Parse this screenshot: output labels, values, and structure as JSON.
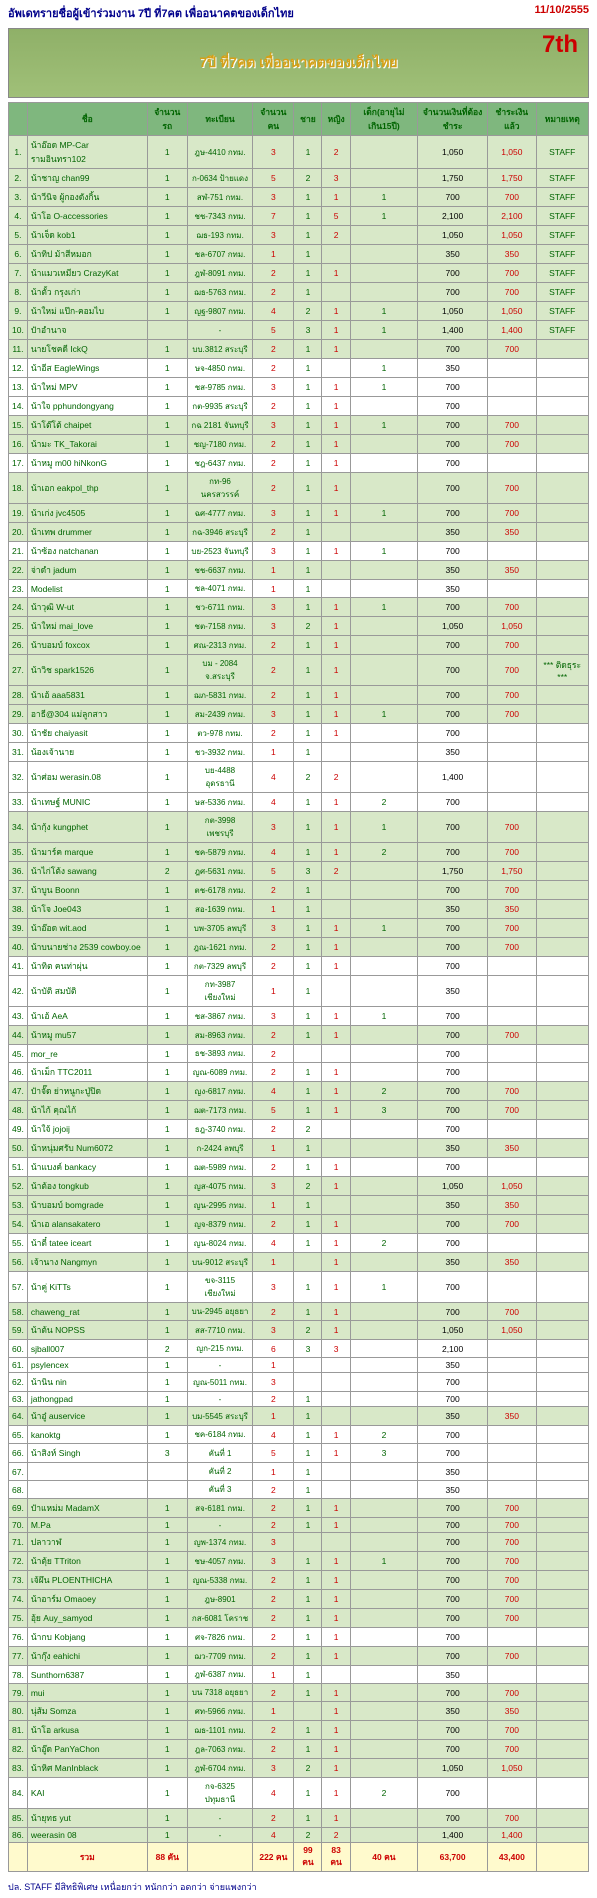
{
  "title": "อัพเดทรายชื่อผู้เข้าร่วมงาน 7ปี ที่7คต เพื่ออนาคตของเด็กไทย",
  "date": "11/10/2555",
  "banner": "7ปี ที่7คต เพื่ออนาคตของเด็กไทย",
  "headers": [
    "",
    "ชื่อ",
    "จำนวนรถ",
    "ทะเบียน",
    "จำนวนคน",
    "ชาย",
    "หญิง",
    "เด็ก(อายุไม่เกิน15ปี)",
    "จำนวนเงินที่ต้องชำระ",
    "ชำระเงินแล้ว",
    "หมายเหตุ"
  ],
  "rows": [
    {
      "i": 1,
      "n": "น้าอ๊อด MP-Car รามอินทรา102",
      "c": 1,
      "r": "ฎษ-4410 กทม.",
      "p": 3,
      "m": 1,
      "f": 2,
      "k": "",
      "a": "1,050",
      "pd": "1,050",
      "nt": "STAFF",
      "hl": 1
    },
    {
      "i": 2,
      "n": "น้าชาญ chan99",
      "c": 1,
      "r": "ก-0634 ป้ายแดง",
      "p": 5,
      "m": 2,
      "f": 3,
      "k": "",
      "a": "1,750",
      "pd": "1,750",
      "nt": "STAFF",
      "hl": 1
    },
    {
      "i": 3,
      "n": "น้าวีนิจ ผู้กองดังกิ้น",
      "c": 1,
      "r": "สฬ-751 กทม.",
      "p": 3,
      "m": 1,
      "f": 1,
      "k": 1,
      "a": "700",
      "pd": "700",
      "nt": "STAFF",
      "hl": 1
    },
    {
      "i": 4,
      "n": "น้าโอ O-accessories",
      "c": 1,
      "r": "ชช-7343 กทม.",
      "p": 7,
      "m": 1,
      "f": 5,
      "k": 1,
      "a": "2,100",
      "pd": "2,100",
      "nt": "STAFF",
      "hl": 1
    },
    {
      "i": 5,
      "n": "น้าเจ็ด kob1",
      "c": 1,
      "r": "ฌธ-193 กทม.",
      "p": 3,
      "m": 1,
      "f": 2,
      "k": "",
      "a": "1,050",
      "pd": "1,050",
      "nt": "STAFF",
      "hl": 1
    },
    {
      "i": 6,
      "n": "น้าทิป ม้าสีหมอก",
      "c": 1,
      "r": "ชล-6707 กทม.",
      "p": 1,
      "m": 1,
      "f": "",
      "k": "",
      "a": "350",
      "pd": "350",
      "nt": "STAFF",
      "hl": 1
    },
    {
      "i": 7,
      "n": "น้าแมวเหมียว CrazyKat",
      "c": 1,
      "r": "ฎฬ-8091 กทม.",
      "p": 2,
      "m": 1,
      "f": 1,
      "k": "",
      "a": "700",
      "pd": "700",
      "nt": "STAFF",
      "hl": 1
    },
    {
      "i": 8,
      "n": "น้าตั้ว กรุงเก่า",
      "c": 1,
      "r": "ฌธ-5763 กทม.",
      "p": 2,
      "m": 1,
      "f": "",
      "k": "",
      "a": "700",
      "pd": "700",
      "nt": "STAFF",
      "hl": 1
    },
    {
      "i": 9,
      "n": "น้าใหม่ แป๊ก-คอมไบ",
      "c": 1,
      "r": "ญฐ-9807 กทม.",
      "p": 4,
      "m": 2,
      "f": 1,
      "k": 1,
      "a": "1,050",
      "pd": "1,050",
      "nt": "STAFF",
      "hl": 1
    },
    {
      "i": 10,
      "n": "ป๋าอำนาจ",
      "c": "",
      "r": "-",
      "p": 5,
      "m": 3,
      "f": 1,
      "k": 1,
      "a": "1,400",
      "pd": "1,400",
      "nt": "STAFF",
      "hl": 1
    },
    {
      "i": 11,
      "n": "นายโชคดี IckQ",
      "c": 1,
      "r": "บบ.3812 สระบุรี",
      "p": 2,
      "m": 1,
      "f": 1,
      "k": "",
      "a": "700",
      "pd": "700",
      "nt": "",
      "hl": 1
    },
    {
      "i": 12,
      "n": "น้าอีส EagleWings",
      "c": 1,
      "r": "ษจ-4850 กทม.",
      "p": 2,
      "m": 1,
      "f": "",
      "k": 1,
      "a": "350",
      "pd": "",
      "nt": ""
    },
    {
      "i": 13,
      "n": "น้าใหม่ MPV",
      "c": 1,
      "r": "ชส-9785 กทม.",
      "p": 3,
      "m": 1,
      "f": 1,
      "k": 1,
      "a": "700",
      "pd": "",
      "nt": ""
    },
    {
      "i": 14,
      "n": "น้าใจ pphundongyang",
      "c": 1,
      "r": "กต-9935 สระบุรี",
      "p": 2,
      "m": 1,
      "f": 1,
      "k": "",
      "a": "700",
      "pd": "",
      "nt": ""
    },
    {
      "i": 15,
      "n": "น้าโต๊โต้ chaipet",
      "c": 1,
      "r": "กฉ 2181 จันทบุรี",
      "p": 3,
      "m": 1,
      "f": 1,
      "k": 1,
      "a": "700",
      "pd": "700",
      "nt": "",
      "hl": 1
    },
    {
      "i": 16,
      "n": "น้ามะ TK_Takorai",
      "c": 1,
      "r": "ชญ-7180 กทม.",
      "p": 2,
      "m": 1,
      "f": 1,
      "k": "",
      "a": "700",
      "pd": "700",
      "nt": "",
      "hl": 1
    },
    {
      "i": 17,
      "n": "น้าหมู m00 hiNkonG",
      "c": 1,
      "r": "ชฎ-6437 กทม.",
      "p": 2,
      "m": 1,
      "f": 1,
      "k": "",
      "a": "700",
      "pd": "",
      "nt": ""
    },
    {
      "i": 18,
      "n": "น้าเอก eakpol_thp",
      "c": 1,
      "r": "กท-96 นครสวรรค์",
      "p": 2,
      "m": 1,
      "f": 1,
      "k": "",
      "a": "700",
      "pd": "700",
      "nt": "",
      "hl": 1
    },
    {
      "i": 19,
      "n": "น้าเก่ง jvc4505",
      "c": 1,
      "r": "ฉศ-4777 กทม.",
      "p": 3,
      "m": 1,
      "f": 1,
      "k": 1,
      "a": "700",
      "pd": "700",
      "nt": "",
      "hl": 1
    },
    {
      "i": 20,
      "n": "น้าเทพ drummer",
      "c": 1,
      "r": "กฉ-3946 สระบุรี",
      "p": 2,
      "m": 1,
      "f": "",
      "k": "",
      "a": "350",
      "pd": "350",
      "nt": "",
      "hl": 1
    },
    {
      "i": 21,
      "n": "น้าซ้อง natchanan",
      "c": 1,
      "r": "บย-2523 จันทบุรี",
      "p": 3,
      "m": 1,
      "f": 1,
      "k": 1,
      "a": "700",
      "pd": "",
      "nt": ""
    },
    {
      "i": 22,
      "n": "จ่าดำ jadum",
      "c": 1,
      "r": "ชช-6637 กทม.",
      "p": 1,
      "m": 1,
      "f": "",
      "k": "",
      "a": "350",
      "pd": "350",
      "nt": "",
      "hl": 1
    },
    {
      "i": 23,
      "n": "Modelist",
      "c": 1,
      "r": "ชล-4071 กทม.",
      "p": 1,
      "m": 1,
      "f": "",
      "k": "",
      "a": "350",
      "pd": "",
      "nt": ""
    },
    {
      "i": 24,
      "n": "น้าวุฒิ W-ut",
      "c": 1,
      "r": "ชว-6711 กทม.",
      "p": 3,
      "m": 1,
      "f": 1,
      "k": 1,
      "a": "700",
      "pd": "700",
      "nt": "",
      "hl": 1
    },
    {
      "i": 25,
      "n": "น้าใหม่ mai_love",
      "c": 1,
      "r": "ชต-7158 กทม.",
      "p": 3,
      "m": 2,
      "f": 1,
      "k": "",
      "a": "1,050",
      "pd": "1,050",
      "nt": "",
      "hl": 1
    },
    {
      "i": 26,
      "n": "น้าบอมบ์ foxcox",
      "c": 1,
      "r": "ศณ-2313 กทม.",
      "p": 2,
      "m": 1,
      "f": 1,
      "k": "",
      "a": "700",
      "pd": "700",
      "nt": "",
      "hl": 1
    },
    {
      "i": 27,
      "n": "น้าวิช spark1526",
      "c": 1,
      "r": "บม - 2084 จ.สระบุรี",
      "p": 2,
      "m": 1,
      "f": 1,
      "k": "",
      "a": "700",
      "pd": "700",
      "nt": "*** ติดธุระ ***",
      "hl": 1
    },
    {
      "i": 28,
      "n": "น้าเอ้ aaa5831",
      "c": 1,
      "r": "ฌภ-5831 กทม.",
      "p": 2,
      "m": 1,
      "f": 1,
      "k": "",
      "a": "700",
      "pd": "700",
      "nt": "",
      "hl": 1
    },
    {
      "i": 29,
      "n": "อาธี@304 แม่ลูกสาว",
      "c": 1,
      "r": "สม-2439 กทม.",
      "p": 3,
      "m": 1,
      "f": 1,
      "k": 1,
      "a": "700",
      "pd": "700",
      "nt": "",
      "hl": 1
    },
    {
      "i": 30,
      "n": "น้าชัย chaiyasit",
      "c": 1,
      "r": "ตว-978 กทม.",
      "p": 2,
      "m": 1,
      "f": 1,
      "k": "",
      "a": "700",
      "pd": "",
      "nt": ""
    },
    {
      "i": 31,
      "n": "น้องเจ้านาย",
      "c": 1,
      "r": "ชว-3932 กทม.",
      "p": 1,
      "m": 1,
      "f": "",
      "k": "",
      "a": "350",
      "pd": "",
      "nt": ""
    },
    {
      "i": 32,
      "n": "น้าศ่อม werasin.08",
      "c": 1,
      "r": "บย-4488 อุดรธานี",
      "p": 4,
      "m": 2,
      "f": 2,
      "k": "",
      "a": "1,400",
      "pd": "",
      "nt": ""
    },
    {
      "i": 33,
      "n": "น้าเทษฐ์ MUNIC",
      "c": 1,
      "r": "ษส-5336 กทม.",
      "p": 4,
      "m": 1,
      "f": 1,
      "k": 2,
      "a": "700",
      "pd": "",
      "nt": ""
    },
    {
      "i": 34,
      "n": "น้ากุ้ง kungphet",
      "c": 1,
      "r": "กต-3998 เพชรบุรี",
      "p": 3,
      "m": 1,
      "f": 1,
      "k": 1,
      "a": "700",
      "pd": "700",
      "nt": "",
      "hl": 1
    },
    {
      "i": 35,
      "n": "น้ามาร์ค marque",
      "c": 1,
      "r": "ชค-5879 กทม.",
      "p": 4,
      "m": 1,
      "f": 1,
      "k": 2,
      "a": "700",
      "pd": "700",
      "nt": "",
      "hl": 1
    },
    {
      "i": 36,
      "n": "น้าไก่โต้ง sawang",
      "c": 2,
      "r": "ฎศ-5631 กทม.",
      "p": 5,
      "m": 3,
      "f": 2,
      "k": "",
      "a": "1,750",
      "pd": "1,750",
      "nt": "",
      "hl": 1
    },
    {
      "i": 37,
      "n": "น้าบูน Boonn",
      "c": 1,
      "r": "ตช-6178 กทม.",
      "p": 2,
      "m": 1,
      "f": "",
      "k": "",
      "a": "700",
      "pd": "700",
      "nt": "",
      "hl": 1
    },
    {
      "i": 38,
      "n": "น้าโจ Joe043",
      "c": 1,
      "r": "สอ-1639 กทม.",
      "p": 1,
      "m": 1,
      "f": "",
      "k": "",
      "a": "350",
      "pd": "350",
      "nt": "",
      "hl": 1
    },
    {
      "i": 39,
      "n": "น้าอ๊อด wit.aod",
      "c": 1,
      "r": "บพ-3705 ลพบุรี",
      "p": 3,
      "m": 1,
      "f": 1,
      "k": 1,
      "a": "700",
      "pd": "700",
      "nt": "",
      "hl": 1
    },
    {
      "i": 40,
      "n": "น้าบนายช่าง 2539 cowboy.oe",
      "c": 1,
      "r": "ฎณ-1621 กทม.",
      "p": 2,
      "m": 1,
      "f": 1,
      "k": "",
      "a": "700",
      "pd": "700",
      "nt": "",
      "hl": 1
    },
    {
      "i": 41,
      "n": "น้าทิต คนท่าผุ่น",
      "c": 1,
      "r": "กต-7329 ลพบุรี",
      "p": 2,
      "m": 1,
      "f": 1,
      "k": "",
      "a": "700",
      "pd": "",
      "nt": ""
    },
    {
      "i": 42,
      "n": "น้าบัติ สมบัติ",
      "c": 1,
      "r": "กท-3987 เชียงใหม่",
      "p": 1,
      "m": 1,
      "f": "",
      "k": "",
      "a": "350",
      "pd": "",
      "nt": ""
    },
    {
      "i": 43,
      "n": "น้าเอ้ AeA",
      "c": 1,
      "r": "ชส-3867 กทม.",
      "p": 3,
      "m": 1,
      "f": 1,
      "k": 1,
      "a": "700",
      "pd": "",
      "nt": ""
    },
    {
      "i": 44,
      "n": "น้าหมู mu57",
      "c": 1,
      "r": "สม-8963 กทม.",
      "p": 2,
      "m": 1,
      "f": 1,
      "k": "",
      "a": "700",
      "pd": "700",
      "nt": "",
      "hl": 1
    },
    {
      "i": 45,
      "n": "mor_re",
      "c": 1,
      "r": "ธช-3893 กทม.",
      "p": 2,
      "m": "",
      "f": "",
      "k": "",
      "a": "700",
      "pd": "",
      "nt": ""
    },
    {
      "i": 46,
      "n": "น้าเม็ก TTC2011",
      "c": 1,
      "r": "ญณ-6089 กทม.",
      "p": 2,
      "m": 1,
      "f": 1,
      "k": "",
      "a": "700",
      "pd": "",
      "nt": ""
    },
    {
      "i": 47,
      "n": "ป๋าจั๊ด ย่าหนูกะปู่ปิด",
      "c": 1,
      "r": "ญง-6817 กทม.",
      "p": 4,
      "m": 1,
      "f": 1,
      "k": 2,
      "a": "700",
      "pd": "700",
      "nt": "",
      "hl": 1
    },
    {
      "i": 48,
      "n": "น้าไก้ คุณไก้",
      "c": 1,
      "r": "ฌต-7173 กทม.",
      "p": 5,
      "m": 1,
      "f": 1,
      "k": 3,
      "a": "700",
      "pd": "700",
      "nt": "",
      "hl": 1
    },
    {
      "i": 49,
      "n": "น้าใจ้ jojoij",
      "c": 1,
      "r": "ธฎ-3740 กทม.",
      "p": 2,
      "m": 2,
      "f": "",
      "k": "",
      "a": "700",
      "pd": "",
      "nt": ""
    },
    {
      "i": 50,
      "n": "น้าหนุ่มศรับ Num6072",
      "c": 1,
      "r": "ก-2424 ลพบุรี",
      "p": 1,
      "m": 1,
      "f": "",
      "k": "",
      "a": "350",
      "pd": "350",
      "nt": "",
      "hl": 1
    },
    {
      "i": 51,
      "n": "น้าแบงค์ bankacy",
      "c": 1,
      "r": "ฌต-5989 กทม.",
      "p": 2,
      "m": 1,
      "f": 1,
      "k": "",
      "a": "700",
      "pd": "",
      "nt": ""
    },
    {
      "i": 52,
      "n": "น้าต้อง tongkub",
      "c": 1,
      "r": "ญส-4075 กทม.",
      "p": 3,
      "m": 2,
      "f": 1,
      "k": "",
      "a": "1,050",
      "pd": "1,050",
      "nt": "",
      "hl": 1
    },
    {
      "i": 53,
      "n": "น้าบอมบ์ bomgrade",
      "c": 1,
      "r": "ญน-2995 กทม.",
      "p": 1,
      "m": 1,
      "f": "",
      "k": "",
      "a": "350",
      "pd": "350",
      "nt": "",
      "hl": 1
    },
    {
      "i": 54,
      "n": "น้าเอ alansakatero",
      "c": 1,
      "r": "ญจ-8379 กทม.",
      "p": 2,
      "m": 1,
      "f": 1,
      "k": "",
      "a": "700",
      "pd": "700",
      "nt": "",
      "hl": 1
    },
    {
      "i": 55,
      "n": "น้าตี๋ tatee iceart",
      "c": 1,
      "r": "ญน-8024 กทม.",
      "p": 4,
      "m": 1,
      "f": 1,
      "k": 2,
      "a": "700",
      "pd": "",
      "nt": ""
    },
    {
      "i": 56,
      "n": "เจ้านาง Nangmyn",
      "c": 1,
      "r": "บน-9012 สระบุรี",
      "p": 1,
      "m": "",
      "f": 1,
      "k": "",
      "a": "350",
      "pd": "350",
      "nt": "",
      "hl": 1
    },
    {
      "i": 57,
      "n": "น้าคู่ KiTTs",
      "c": 1,
      "r": "ขจ-3115 เชียงใหม่",
      "p": 3,
      "m": 1,
      "f": 1,
      "k": 1,
      "a": "700",
      "pd": "",
      "nt": ""
    },
    {
      "i": 58,
      "n": "chaweng_rat",
      "c": 1,
      "r": "บน-2945 อยุธยา",
      "p": 2,
      "m": 1,
      "f": 1,
      "k": "",
      "a": "700",
      "pd": "700",
      "nt": "",
      "hl": 1
    },
    {
      "i": 59,
      "n": "น้าต้น NOPSS",
      "c": 1,
      "r": "สส-7710 กทม.",
      "p": 3,
      "m": 2,
      "f": 1,
      "k": "",
      "a": "1,050",
      "pd": "1,050",
      "nt": "",
      "hl": 1
    },
    {
      "i": 60,
      "n": "sjball007",
      "c": 2,
      "r": "ญก-215 กทม.",
      "p": 6,
      "m": 3,
      "f": 3,
      "k": "",
      "a": "2,100",
      "pd": "",
      "nt": ""
    },
    {
      "i": 61,
      "n": "psylencex",
      "c": 1,
      "r": "-",
      "p": 1,
      "m": "",
      "f": "",
      "k": "",
      "a": "350",
      "pd": "",
      "nt": ""
    },
    {
      "i": 62,
      "n": "น้านิน nin",
      "c": 1,
      "r": "ญณ-5011 กทม.",
      "p": 3,
      "m": "",
      "f": "",
      "k": "",
      "a": "700",
      "pd": "",
      "nt": ""
    },
    {
      "i": 63,
      "n": "jathongpad",
      "c": 1,
      "r": "-",
      "p": 2,
      "m": 1,
      "f": "",
      "k": "",
      "a": "700",
      "pd": "",
      "nt": ""
    },
    {
      "i": 64,
      "n": "น้าอู๋ auservice",
      "c": 1,
      "r": "บม-5545 สระบุรี",
      "p": 1,
      "m": 1,
      "f": "",
      "k": "",
      "a": "350",
      "pd": "350",
      "nt": "",
      "hl": 1
    },
    {
      "i": 65,
      "n": "kanoktg",
      "c": 1,
      "r": "ชค-6184 กทม.",
      "p": 4,
      "m": 1,
      "f": 1,
      "k": 2,
      "a": "700",
      "pd": "",
      "nt": ""
    },
    {
      "i": 66,
      "n": "น้าสิงห์ Singh",
      "c": 3,
      "r": "คันที่ 1",
      "p": 5,
      "m": 1,
      "f": 1,
      "k": 3,
      "a": "700",
      "pd": "",
      "nt": ""
    },
    {
      "i": 67,
      "n": "",
      "c": "",
      "r": "คันที่ 2",
      "p": 1,
      "m": 1,
      "f": "",
      "k": "",
      "a": "350",
      "pd": "",
      "nt": ""
    },
    {
      "i": 68,
      "n": "",
      "c": "",
      "r": "คันที่ 3",
      "p": 2,
      "m": 1,
      "f": "",
      "k": "",
      "a": "350",
      "pd": "",
      "nt": ""
    },
    {
      "i": 69,
      "n": "ป๋าแหม่ม MadamX",
      "c": 1,
      "r": "สจ-6181 กทม.",
      "p": 2,
      "m": 1,
      "f": 1,
      "k": "",
      "a": "700",
      "pd": "700",
      "nt": "",
      "hl": 1
    },
    {
      "i": 70,
      "n": "M.Pa",
      "c": 1,
      "r": "-",
      "p": 2,
      "m": 1,
      "f": 1,
      "k": "",
      "a": "700",
      "pd": "700",
      "nt": "",
      "hl": 1
    },
    {
      "i": 71,
      "n": "ปลาวาฬ",
      "c": 1,
      "r": "ญพ-1374 กทม.",
      "p": 3,
      "m": "",
      "f": "",
      "k": "",
      "a": "700",
      "pd": "700",
      "nt": "",
      "hl": 1
    },
    {
      "i": 72,
      "n": "น้าตุ้ย TTriton",
      "c": 1,
      "r": "ชษ-4057 กทม.",
      "p": 3,
      "m": 1,
      "f": 1,
      "k": 1,
      "a": "700",
      "pd": "700",
      "nt": "",
      "hl": 1
    },
    {
      "i": 73,
      "n": "เจ้ผึน PLOENTHICHA",
      "c": 1,
      "r": "ญณ-5338 กทม.",
      "p": 2,
      "m": 1,
      "f": 1,
      "k": "",
      "a": "700",
      "pd": "700",
      "nt": "",
      "hl": 1
    },
    {
      "i": 74,
      "n": "น้าอาร์ม Omaoey",
      "c": 1,
      "r": "ฎษ-8901",
      "p": 2,
      "m": 1,
      "f": 1,
      "k": "",
      "a": "700",
      "pd": "700",
      "nt": "",
      "hl": 1
    },
    {
      "i": 75,
      "n": "อุ้ย Auy_samyod",
      "c": 1,
      "r": "กส-6081 โคราช",
      "p": 2,
      "m": 1,
      "f": 1,
      "k": "",
      "a": "700",
      "pd": "700",
      "nt": "",
      "hl": 1
    },
    {
      "i": 76,
      "n": "น้ากบ Kobjang",
      "c": 1,
      "r": "ศจ-7826 กทม.",
      "p": 2,
      "m": 1,
      "f": 1,
      "k": "",
      "a": "700",
      "pd": "",
      "nt": ""
    },
    {
      "i": 77,
      "n": "น้ากุ๊ง eahichi",
      "c": 1,
      "r": "ฌว-7709 กทม.",
      "p": 2,
      "m": 1,
      "f": 1,
      "k": "",
      "a": "700",
      "pd": "700",
      "nt": "",
      "hl": 1
    },
    {
      "i": 78,
      "n": "Sunthorn6387",
      "c": 1,
      "r": "ฎฬ-6387 กทม.",
      "p": 1,
      "m": 1,
      "f": "",
      "k": "",
      "a": "350",
      "pd": "",
      "nt": ""
    },
    {
      "i": 79,
      "n": "mui",
      "c": 1,
      "r": "บน 7318 อยุธยา",
      "p": 2,
      "m": 1,
      "f": 1,
      "k": "",
      "a": "700",
      "pd": "700",
      "nt": "",
      "hl": 1
    },
    {
      "i": 80,
      "n": "นุ่ส้ม Somza",
      "c": 1,
      "r": "ศท-5966 กทม.",
      "p": 1,
      "m": "",
      "f": 1,
      "k": "",
      "a": "350",
      "pd": "350",
      "nt": "",
      "hl": 1
    },
    {
      "i": 81,
      "n": "น้าโอ arkusa",
      "c": 1,
      "r": "ฌธ-1101 กทม.",
      "p": 2,
      "m": 1,
      "f": 1,
      "k": "",
      "a": "700",
      "pd": "700",
      "nt": "",
      "hl": 1
    },
    {
      "i": 82,
      "n": "น้าอู๊ด PanYaChon",
      "c": 1,
      "r": "ฎล-7063 กทม.",
      "p": 2,
      "m": 1,
      "f": 1,
      "k": "",
      "a": "700",
      "pd": "700",
      "nt": "",
      "hl": 1
    },
    {
      "i": 83,
      "n": "น้าหิศ ManInblack",
      "c": 1,
      "r": "ฎฬ-6704 กทม.",
      "p": 3,
      "m": 2,
      "f": 1,
      "k": "",
      "a": "1,050",
      "pd": "1,050",
      "nt": "",
      "hl": 1
    },
    {
      "i": 84,
      "n": "KAI",
      "c": 1,
      "r": "กจ-6325 ปทุมธานี",
      "p": 4,
      "m": 1,
      "f": 1,
      "k": 2,
      "a": "700",
      "pd": "",
      "nt": ""
    },
    {
      "i": 85,
      "n": "น้ายุทธ yut",
      "c": 1,
      "r": "-",
      "p": 2,
      "m": 1,
      "f": 1,
      "k": "",
      "a": "700",
      "pd": "700",
      "nt": "",
      "hl": 1
    },
    {
      "i": 86,
      "n": "weerasin 08",
      "c": 1,
      "r": "-",
      "p": 4,
      "m": 2,
      "f": 2,
      "k": "",
      "a": "1,400",
      "pd": "1,400",
      "nt": "",
      "hl": 1
    }
  ],
  "totals": {
    "label": "รวม",
    "cars": "88 คัน",
    "people": "222 คน",
    "m": "99 คน",
    "f": "83 คน",
    "k": "40 คน",
    "amount": "63,700",
    "paid": "43,400"
  },
  "footnote": "ปล. STAFF มีสิทธิพิเศษ เหนื่อยกว่า หนักกว่า อดกว่า จ่ายแพงกว่า"
}
